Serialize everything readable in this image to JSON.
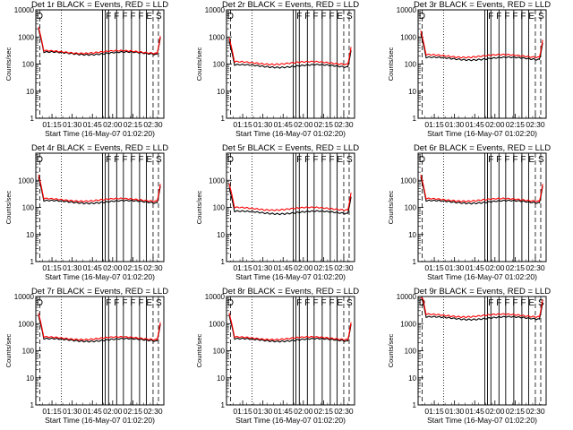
{
  "figure": {
    "background": "#ffffff",
    "axis_color": "#000000",
    "events_color": "#000000",
    "lld_color": "#ff0000"
  },
  "chart_data": [
    {
      "type": "line",
      "title": "Det 1r BLACK = Events, RED = LLD",
      "ylabel": "Counts/sec",
      "xlabel": "Start Time (16-May-07 01:02:20)",
      "xlim": [
        "01:03",
        "02:38"
      ],
      "ylim": [
        1,
        10000
      ],
      "y_scale": "log",
      "x_ticks": [
        "01:15",
        "01:30",
        "01:45",
        "02:00",
        "02:15",
        "02:30"
      ],
      "y_ticks": [
        "1",
        "10",
        "100",
        "1000",
        "10000"
      ],
      "flags": [
        "D",
        "F",
        "F",
        "F",
        "F",
        "F",
        "E",
        "S"
      ],
      "events_level": 250,
      "lld_level": 280
    },
    {
      "type": "line",
      "title": "Det 2r BLACK = Events, RED = LLD",
      "ylabel": "Counts/sec",
      "xlabel": "Start Time (16-May-07 01:02:20)",
      "xlim": [
        "01:03",
        "02:38"
      ],
      "ylim": [
        1,
        10000
      ],
      "y_scale": "log",
      "x_ticks": [
        "01:15",
        "01:30",
        "01:45",
        "02:00",
        "02:15",
        "02:30"
      ],
      "y_ticks": [
        "1",
        "10",
        "100",
        "1000",
        "10000"
      ],
      "flags": [
        "D",
        "F",
        "F",
        "F",
        "F",
        "F",
        "E",
        "S"
      ],
      "events_level": 85,
      "lld_level": 110
    },
    {
      "type": "line",
      "title": "Det 3r BLACK = Events, RED = LLD",
      "ylabel": "Counts/sec",
      "xlabel": "Start Time (16-May-07 01:02:20)",
      "xlim": [
        "01:03",
        "02:38"
      ],
      "ylim": [
        1,
        10000
      ],
      "y_scale": "log",
      "x_ticks": [
        "01:15",
        "01:30",
        "01:45",
        "02:00",
        "02:15",
        "02:30"
      ],
      "y_ticks": [
        "1",
        "10",
        "100",
        "1000",
        "10000"
      ],
      "flags": [
        "D",
        "F",
        "F",
        "F",
        "F",
        "F",
        "E",
        "S"
      ],
      "events_level": 160,
      "lld_level": 200
    },
    {
      "type": "line",
      "title": "Det 4r BLACK = Events, RED = LLD",
      "ylabel": "Counts/sec",
      "xlabel": "Start Time (16-May-07 01:02:20)",
      "xlim": [
        "01:03",
        "02:38"
      ],
      "ylim": [
        1,
        10000
      ],
      "y_scale": "log",
      "x_ticks": [
        "01:15",
        "01:30",
        "01:45",
        "02:00",
        "02:15",
        "02:30"
      ],
      "y_ticks": [
        "1",
        "10",
        "100",
        "1000"
      ],
      "flags": [
        "D",
        "F",
        "F",
        "F",
        "F",
        "F",
        "E",
        "S"
      ],
      "events_level": 160,
      "lld_level": 190
    },
    {
      "type": "line",
      "title": "Det 5r BLACK = Events, RED = LLD",
      "ylabel": "Counts/sec",
      "xlabel": "Start Time (16-May-07 01:02:20)",
      "xlim": [
        "01:03",
        "02:38"
      ],
      "ylim": [
        1,
        10000
      ],
      "y_scale": "log",
      "x_ticks": [
        "01:15",
        "01:30",
        "01:45",
        "02:00",
        "02:15",
        "02:30"
      ],
      "y_ticks": [
        "1",
        "10",
        "100",
        "1000"
      ],
      "flags": [
        "D",
        "F",
        "F",
        "F",
        "F",
        "F",
        "E",
        "S"
      ],
      "events_level": 65,
      "lld_level": 90
    },
    {
      "type": "line",
      "title": "Det 6r BLACK = Events, RED = LLD",
      "ylabel": "Counts/sec",
      "xlabel": "Start Time (16-May-07 01:02:20)",
      "xlim": [
        "01:03",
        "02:38"
      ],
      "ylim": [
        1,
        10000
      ],
      "y_scale": "log",
      "x_ticks": [
        "01:15",
        "01:30",
        "01:45",
        "02:00",
        "02:15",
        "02:30"
      ],
      "y_ticks": [
        "1",
        "10",
        "100",
        "1000"
      ],
      "flags": [
        "D",
        "F",
        "F",
        "F",
        "F",
        "F",
        "E",
        "S"
      ],
      "events_level": 160,
      "lld_level": 190
    },
    {
      "type": "line",
      "title": "Det 7r BLACK = Events, RED = LLD",
      "ylabel": "Counts/sec",
      "xlabel": "Start Time (16-May-07 01:02:20)",
      "xlim": [
        "01:03",
        "02:38"
      ],
      "ylim": [
        1,
        10000
      ],
      "y_scale": "log",
      "x_ticks": [
        "01:15",
        "01:30",
        "01:45",
        "02:00",
        "02:15",
        "02:30"
      ],
      "y_ticks": [
        "1",
        "10",
        "100",
        "1000",
        "10000"
      ],
      "flags": [
        "D",
        "F",
        "F",
        "F",
        "F",
        "F",
        "E",
        "S"
      ],
      "events_level": 250,
      "lld_level": 290
    },
    {
      "type": "line",
      "title": "Det 8r BLACK = Events, RED = LLD",
      "ylabel": "Counts/sec",
      "xlabel": "Start Time (16-May-07 01:02:20)",
      "xlim": [
        "01:03",
        "02:38"
      ],
      "ylim": [
        1,
        10000
      ],
      "y_scale": "log",
      "x_ticks": [
        "01:15",
        "01:30",
        "01:45",
        "02:00",
        "02:15",
        "02:30"
      ],
      "y_ticks": [
        "1",
        "10",
        "100",
        "1000",
        "10000"
      ],
      "flags": [
        "D",
        "F",
        "F",
        "F",
        "F",
        "F",
        "E",
        "S"
      ],
      "events_level": 250,
      "lld_level": 290
    },
    {
      "type": "line",
      "title": "Det 9r BLACK = Events, RED = LLD",
      "ylabel": "Counts/sec",
      "xlabel": "Start Time (16-May-07 01:02:20)",
      "xlim": [
        "01:03",
        "02:38"
      ],
      "ylim": [
        1,
        10000
      ],
      "y_scale": "log",
      "x_ticks": [
        "01:15",
        "01:30",
        "01:45",
        "02:00",
        "02:15",
        "02:30"
      ],
      "y_ticks": [
        "1",
        "10",
        "100",
        "1000",
        "10000"
      ],
      "flags": [
        "D",
        "F",
        "F",
        "F",
        "F",
        "F",
        "E",
        "S"
      ],
      "events_level": 1600,
      "lld_level": 2000
    }
  ]
}
